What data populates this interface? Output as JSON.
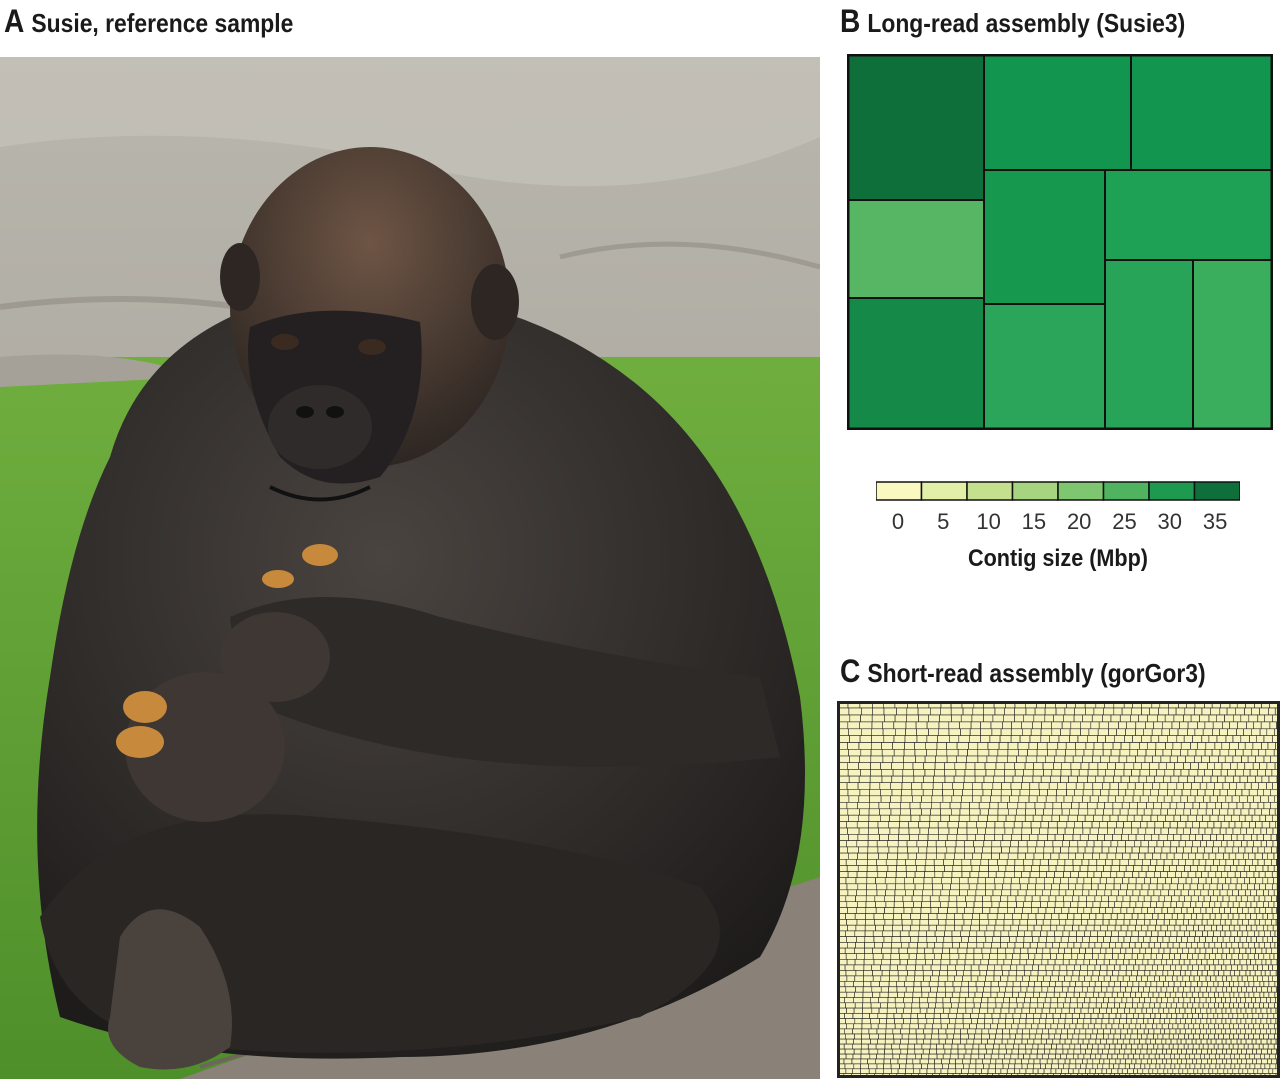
{
  "panels": {
    "a": {
      "letter": "A",
      "title": "Susie, reference sample"
    },
    "b": {
      "letter": "B",
      "title": "Long-read assembly (Susie3)"
    },
    "c": {
      "letter": "C",
      "title": "Short-read assembly (gorGor3)"
    }
  },
  "legend": {
    "title": "Contig size (Mbp)",
    "ticks": [
      "0",
      "5",
      "10",
      "15",
      "20",
      "25",
      "30",
      "35"
    ],
    "colors": [
      "#fbf7c0",
      "#e2efa6",
      "#c4e08e",
      "#a6d480",
      "#7ec66f",
      "#4fb35f",
      "#1e9a50",
      "#0f6f3a"
    ]
  },
  "colors": {
    "c_cell_fill": "#f7f3c0",
    "c_cell_stroke": "#222222",
    "b_cell_stroke": "#111111"
  },
  "photo": {
    "subject": "gorilla sitting on a log eating food pellets"
  }
}
